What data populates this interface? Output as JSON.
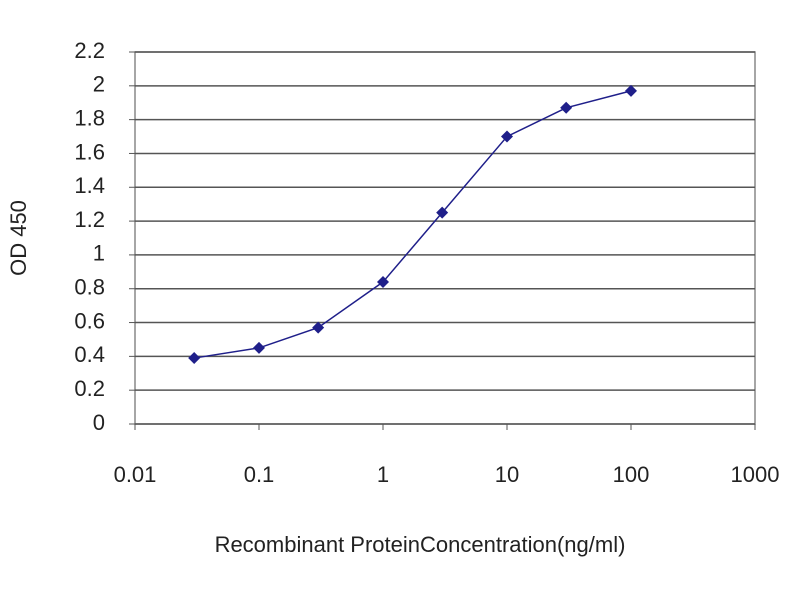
{
  "chart_data": {
    "type": "line",
    "x_label": "Recombinant ProteinConcentration(ng/ml)",
    "y_label": "OD 450",
    "x": [
      0.03,
      0.1,
      0.3,
      1,
      3,
      10,
      30,
      100
    ],
    "series": [
      {
        "color": "#1f1f8a",
        "values": [
          0.39,
          0.45,
          0.57,
          0.84,
          1.25,
          1.7,
          1.87,
          1.97
        ]
      }
    ],
    "xlim": [
      0.01,
      1000
    ],
    "xticks": [
      0.01,
      0.1,
      1,
      10,
      100,
      1000
    ],
    "x_log": true,
    "ylim": [
      0,
      2.2
    ],
    "yticks": [
      0,
      0.2,
      0.4,
      0.6,
      0.8,
      1,
      1.2,
      1.4,
      1.6,
      1.8,
      2,
      2.2
    ],
    "grid": true
  }
}
